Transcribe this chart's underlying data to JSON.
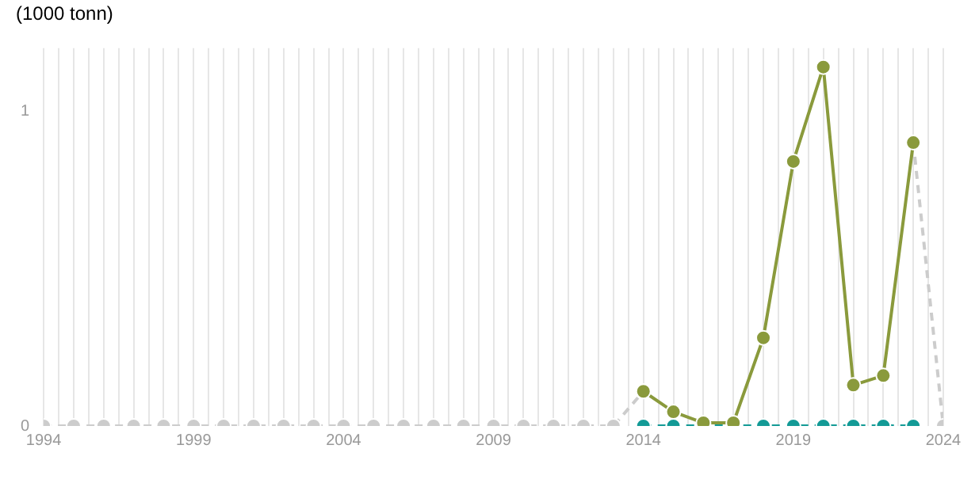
{
  "chart_data": {
    "type": "line",
    "ylabel": "(1000 tonn)",
    "x": [
      1994,
      1995,
      1996,
      1997,
      1998,
      1999,
      2000,
      2001,
      2002,
      2003,
      2004,
      2005,
      2006,
      2007,
      2008,
      2009,
      2010,
      2011,
      2012,
      2013,
      2014,
      2015,
      2016,
      2017,
      2018,
      2019,
      2020,
      2021,
      2022,
      2023,
      2024
    ],
    "series": [
      {
        "color": "#cccccc",
        "line_style": "dashed",
        "values": [
          0,
          0,
          0,
          0,
          0,
          0,
          0,
          0,
          0,
          0,
          0,
          0,
          0,
          0,
          0,
          0,
          0,
          0,
          0,
          0,
          0.11,
          null,
          null,
          null,
          null,
          null,
          null,
          null,
          null,
          0.9,
          0
        ]
      },
      {
        "color": "#139a96",
        "line_style": "dashed",
        "values": [
          null,
          null,
          null,
          null,
          null,
          null,
          null,
          null,
          null,
          null,
          null,
          null,
          null,
          null,
          null,
          null,
          null,
          null,
          null,
          null,
          0,
          0,
          0,
          0,
          0,
          0,
          0,
          0,
          0,
          0,
          null
        ]
      },
      {
        "color": "#8a9a3c",
        "line_style": "solid",
        "values": [
          null,
          null,
          null,
          null,
          null,
          null,
          null,
          null,
          null,
          null,
          null,
          null,
          null,
          null,
          null,
          null,
          null,
          null,
          null,
          null,
          0.11,
          0.045,
          0.01,
          0.01,
          0.28,
          0.84,
          1.14,
          0.13,
          0.16,
          0.9,
          null
        ]
      }
    ],
    "xlim": [
      1994,
      2024
    ],
    "xticks": [
      1994,
      {
        "value": 1994.5,
        "label": null
      },
      {
        "value": 1995,
        "label": null
      },
      {
        "value": 1995.5,
        "label": null
      },
      {
        "value": 1996,
        "label": null
      },
      {
        "value": 1996.5,
        "label": null
      },
      {
        "value": 1997,
        "label": null
      },
      {
        "value": 1997.5,
        "label": null
      },
      {
        "value": 1998,
        "label": null
      },
      {
        "value": 1998.5,
        "label": null
      },
      1999,
      {
        "value": 1999.5,
        "label": null
      },
      {
        "value": 2000,
        "label": null
      },
      {
        "value": 2000.5,
        "label": null
      },
      {
        "value": 2001,
        "label": null
      },
      {
        "value": 2001.5,
        "label": null
      },
      {
        "value": 2002,
        "label": null
      },
      {
        "value": 2002.5,
        "label": null
      },
      {
        "value": 2003,
        "label": null
      },
      {
        "value": 2003.5,
        "label": null
      },
      2004,
      {
        "value": 2004.5,
        "label": null
      },
      {
        "value": 2005,
        "label": null
      },
      {
        "value": 2005.5,
        "label": null
      },
      {
        "value": 2006,
        "label": null
      },
      {
        "value": 2006.5,
        "label": null
      },
      {
        "value": 2007,
        "label": null
      },
      {
        "value": 2007.5,
        "label": null
      },
      {
        "value": 2008,
        "label": null
      },
      {
        "value": 2008.5,
        "label": null
      },
      2009,
      {
        "value": 2009.5,
        "label": null
      },
      {
        "value": 2010,
        "label": null
      },
      {
        "value": 2010.5,
        "label": null
      },
      {
        "value": 2011,
        "label": null
      },
      {
        "value": 2011.5,
        "label": null
      },
      {
        "value": 2012,
        "label": null
      },
      {
        "value": 2012.5,
        "label": null
      },
      {
        "value": 2013,
        "label": null
      },
      {
        "value": 2013.5,
        "label": null
      },
      2014,
      {
        "value": 2014.5,
        "label": null
      },
      {
        "value": 2015,
        "label": null
      },
      {
        "value": 2015.5,
        "label": null
      },
      {
        "value": 2016,
        "label": null
      },
      {
        "value": 2016.5,
        "label": null
      },
      {
        "value": 2017,
        "label": null
      },
      {
        "value": 2017.5,
        "label": null
      },
      {
        "value": 2018,
        "label": null
      },
      {
        "value": 2018.5,
        "label": null
      },
      2019,
      {
        "value": 2019.5,
        "label": null
      },
      {
        "value": 2020,
        "label": null
      },
      {
        "value": 2020.5,
        "label": null
      },
      {
        "value": 2021,
        "label": null
      },
      {
        "value": 2021.5,
        "label": null
      },
      {
        "value": 2022,
        "label": null
      },
      {
        "value": 2022.5,
        "label": null
      },
      {
        "value": 2023,
        "label": null
      },
      {
        "value": 2023.5,
        "label": null
      },
      2024
    ],
    "ylim": [
      0,
      1.2
    ],
    "yticks": [
      0,
      1
    ],
    "grid": "x",
    "legend": false,
    "marker": "circle"
  }
}
